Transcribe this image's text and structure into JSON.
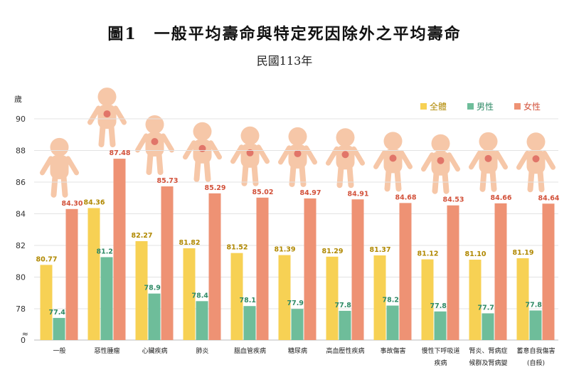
{
  "title": "圖1　一般平均壽命與特定死因除外之平均壽命",
  "subtitle": "民國113年",
  "colors": {
    "all": "#F7D154",
    "male": "#6EBD9A",
    "female": "#EE9274",
    "all_text": "#B08800",
    "male_text": "#2F8A66",
    "female_text": "#D2513A"
  },
  "chart_data": {
    "type": "bar",
    "ylabel": "歲",
    "ylim": [
      76,
      90
    ],
    "yticks": [
      "78",
      "80",
      "82",
      "84",
      "86",
      "88",
      "90"
    ],
    "zero_label": "0",
    "axis_break_symbol": "≈",
    "legend_position": "top-right",
    "categories": [
      [
        "一般"
      ],
      [
        "惡性腫瘤"
      ],
      [
        "心臟疾病"
      ],
      [
        "肺炎"
      ],
      [
        "腦血管疾病"
      ],
      [
        "糖尿病"
      ],
      [
        "高血壓性疾病"
      ],
      [
        "事故傷害"
      ],
      [
        "慢性下呼吸道",
        "疾病"
      ],
      [
        "腎炎、腎病症",
        "候群及腎病變"
      ],
      [
        "蓄意自我傷害",
        "(自殺)"
      ]
    ],
    "series": [
      {
        "name": "全體",
        "values": [
          80.77,
          84.36,
          82.27,
          81.82,
          81.52,
          81.39,
          81.29,
          81.37,
          81.12,
          81.1,
          81.19
        ],
        "labels": [
          "80.77",
          "84.36",
          "82.27",
          "81.82",
          "81.52",
          "81.39",
          "81.29",
          "81.37",
          "81.12",
          "81.10",
          "81.19"
        ]
      },
      {
        "name": "男性",
        "values": [
          77.42,
          81.26,
          78.96,
          78.48,
          78.17,
          77.99,
          77.87,
          78.2,
          77.83,
          77.71,
          77.89
        ],
        "labels": [
          "77.42",
          "81.26",
          "78.96",
          "78.48",
          "78.17",
          "77.99",
          "77.87",
          "78.20",
          "77.83",
          "77.71",
          "77.89"
        ]
      },
      {
        "name": "女性",
        "values": [
          84.3,
          87.48,
          85.73,
          85.29,
          85.02,
          84.97,
          84.91,
          84.68,
          84.53,
          84.66,
          84.64
        ],
        "labels": [
          "84.30",
          "87.48",
          "85.73",
          "85.29",
          "85.02",
          "84.97",
          "84.91",
          "84.68",
          "84.53",
          "84.66",
          "84.64"
        ]
      }
    ]
  }
}
